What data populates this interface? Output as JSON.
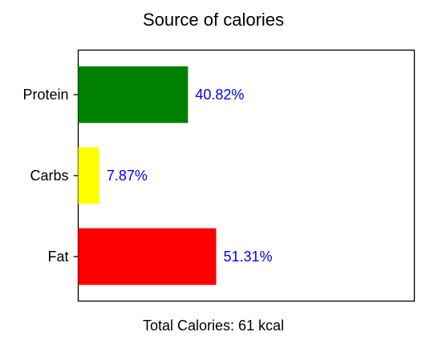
{
  "chart_data": {
    "type": "bar",
    "orientation": "horizontal",
    "title": "Source of calories",
    "categories": [
      "Fat",
      "Carbs",
      "Protein"
    ],
    "values": [
      51.31,
      7.87,
      40.82
    ],
    "data_labels": [
      "51.31%",
      "7.87%",
      "40.82%"
    ],
    "bar_colors": [
      "#ff0000",
      "#ffff00",
      "#008000"
    ],
    "label_color": "#0000ff",
    "xlim": [
      0,
      125
    ],
    "x_ticks_visible": false,
    "grid": false,
    "xlabel": "",
    "ylabel": "",
    "caption": "Total Calories: 61 kcal"
  }
}
